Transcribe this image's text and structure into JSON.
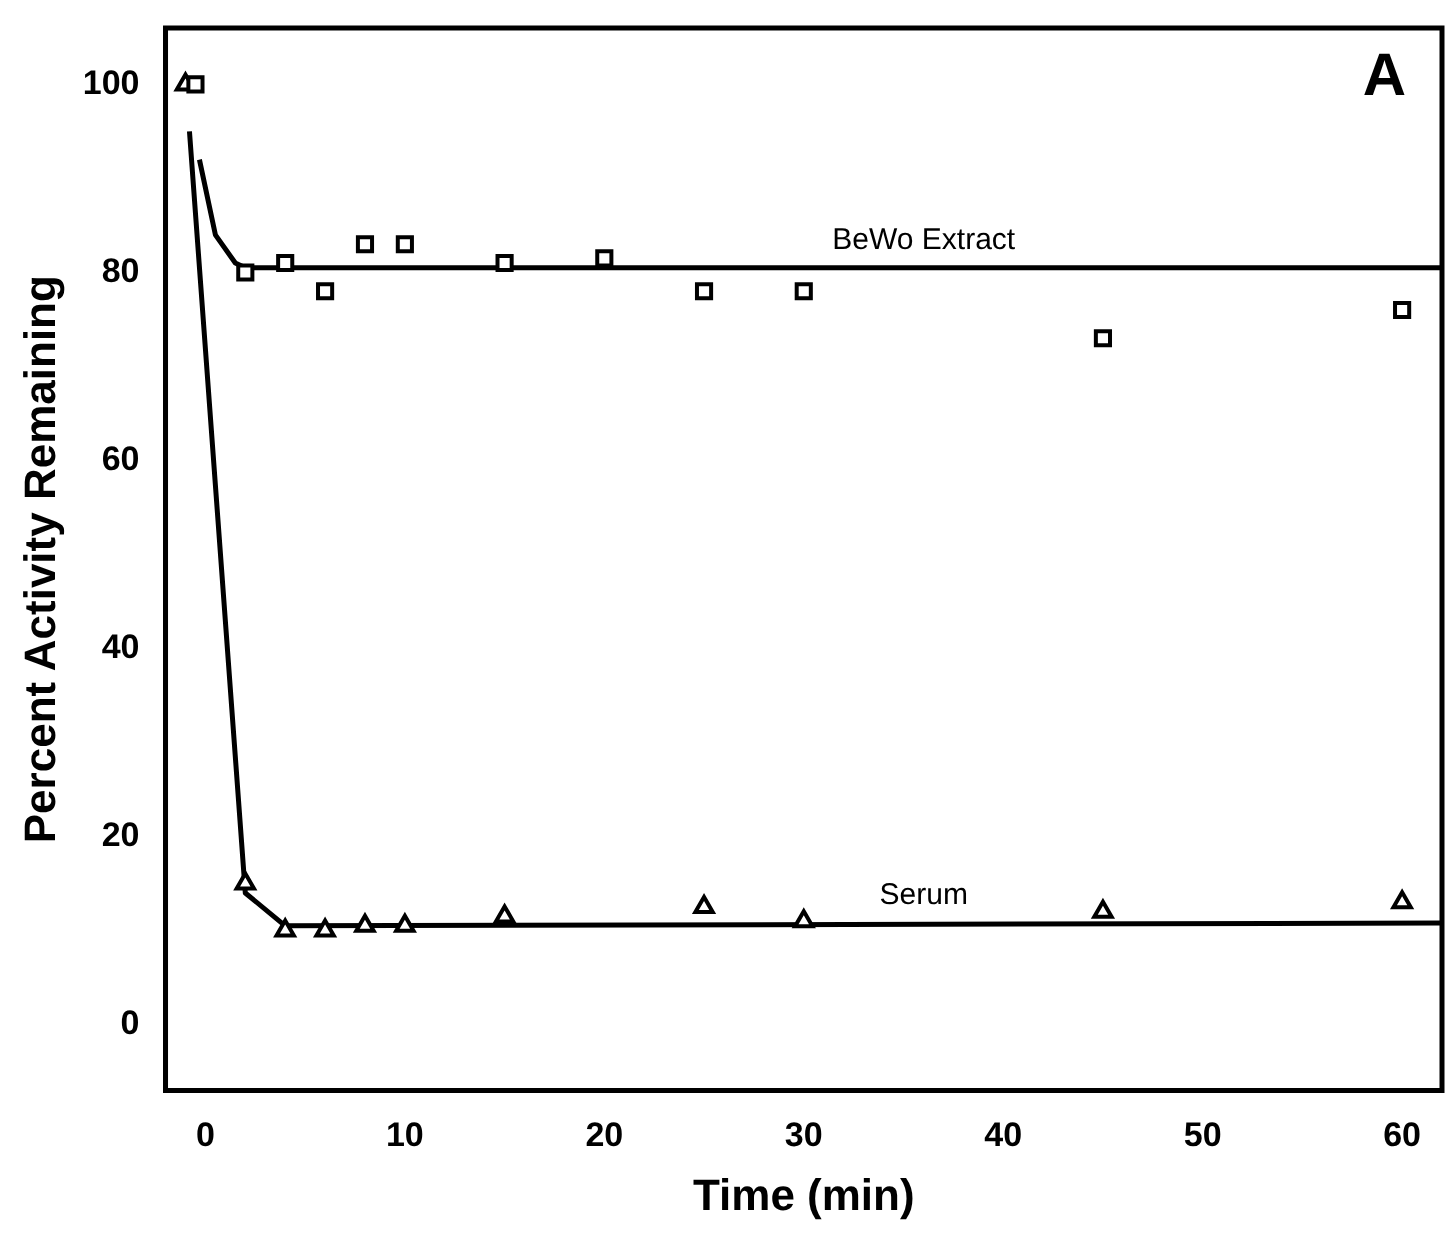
{
  "chart_data": {
    "type": "scatter",
    "xlabel": "Time (min)",
    "ylabel": "Percent Activity Remaining",
    "xlim": [
      -2,
      62
    ],
    "xticks": [
      0,
      10,
      20,
      30,
      40,
      50,
      60
    ],
    "ylim": [
      -7,
      106
    ],
    "yticks": [
      0,
      20,
      40,
      60,
      80,
      100
    ],
    "grid": false,
    "legend": false,
    "series": [
      {
        "marker": "square",
        "color": "#000000",
        "x": [
          -0.5,
          2,
          4,
          6,
          8,
          10,
          15,
          20,
          25,
          30,
          45,
          60
        ],
        "values": [
          100,
          80,
          81,
          78,
          83,
          83,
          81,
          81.5,
          78,
          78,
          73,
          76
        ]
      },
      {
        "marker": "triangle",
        "color": "#000000",
        "x": [
          -1,
          2,
          4,
          6,
          8,
          10,
          15,
          25,
          30,
          45,
          60
        ],
        "values": [
          100,
          15,
          10,
          10,
          10.5,
          10.5,
          11.5,
          12.5,
          11,
          12,
          13
        ]
      },
      {
        "type": "line",
        "name": "BeWo Extract",
        "marker": "none",
        "line_style": "solid",
        "color": "#000000",
        "x": [
          -0.3,
          0.5,
          1.5,
          2,
          62
        ],
        "values": [
          92,
          84,
          81,
          80.5,
          80.5
        ]
      },
      {
        "type": "line",
        "name": "Serum",
        "marker": "none",
        "line_style": "solid",
        "color": "#000000",
        "x": [
          -0.8,
          2,
          4,
          62
        ],
        "values": [
          95,
          14,
          10.5,
          10.8
        ]
      }
    ],
    "annotations": [
      "A"
    ]
  }
}
